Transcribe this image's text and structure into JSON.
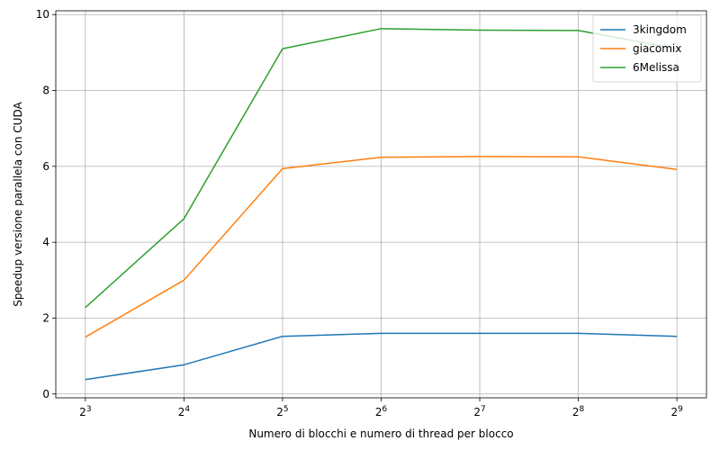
{
  "chart_data": {
    "type": "line",
    "xlabel": "Numero di blocchi e numero di thread per blocco",
    "ylabel": "Speedup versione parallela con CUDA",
    "x_scale": "log2",
    "x": [
      8,
      16,
      32,
      64,
      128,
      256,
      512
    ],
    "x_ticks": [
      {
        "value": 8,
        "base": "2",
        "exp": "3"
      },
      {
        "value": 16,
        "base": "2",
        "exp": "4"
      },
      {
        "value": 32,
        "base": "2",
        "exp": "5"
      },
      {
        "value": 64,
        "base": "2",
        "exp": "6"
      },
      {
        "value": 128,
        "base": "2",
        "exp": "7"
      },
      {
        "value": 256,
        "base": "2",
        "exp": "8"
      },
      {
        "value": 512,
        "base": "2",
        "exp": "9"
      }
    ],
    "y_ticks": [
      0,
      2,
      4,
      6,
      8,
      10
    ],
    "ylim": [
      -0.1,
      10.1
    ],
    "grid": true,
    "legend_position": "top-right",
    "series": [
      {
        "name": "3kingdom",
        "color": "#1f77b4",
        "values": [
          0.38,
          0.77,
          1.52,
          1.6,
          1.6,
          1.6,
          1.52
        ]
      },
      {
        "name": "giacomix",
        "color": "#ff7f0e",
        "values": [
          1.5,
          3.0,
          5.94,
          6.24,
          6.26,
          6.25,
          5.92
        ]
      },
      {
        "name": "6Melissa",
        "color": "#2ca02c",
        "values": [
          2.28,
          4.62,
          9.1,
          9.63,
          9.59,
          9.58,
          9.1
        ]
      }
    ]
  }
}
